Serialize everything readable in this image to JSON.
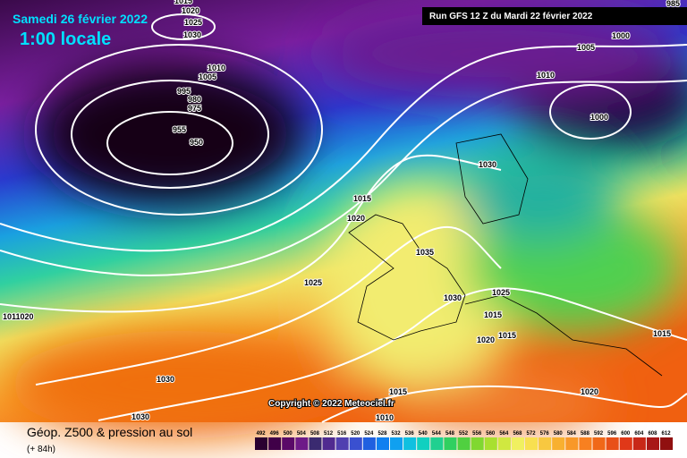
{
  "header": {
    "valid_date": "Samedi 26 février 2022",
    "local_time": "1:00 locale",
    "run": "Run GFS 12 Z du Mardi 22 février 2022"
  },
  "copyright": "Copyright © 2022 Meteociel.fr",
  "footer": {
    "title": "Géop. Z500 & pression au sol",
    "lead_time": "(+ 84h)"
  },
  "colorbar": {
    "levels": [
      492,
      496,
      500,
      504,
      508,
      512,
      516,
      520,
      524,
      528,
      532,
      536,
      540,
      544,
      548,
      552,
      556,
      560,
      564,
      568,
      572,
      576,
      580,
      584,
      588,
      592,
      596,
      600,
      604,
      608,
      612
    ]
  },
  "isobar_labels": [
    "1015",
    "1020",
    "1025",
    "1030",
    "985",
    "1000",
    "1005",
    "1010",
    "1000",
    "1010",
    "1005",
    "995",
    "980",
    "975",
    "955",
    "950",
    "1030",
    "1015",
    "1020",
    "1035",
    "1025",
    "1030",
    "1025",
    "1015",
    "1015",
    "1020",
    "1015",
    "1011020",
    "1030",
    "1030",
    "1015",
    "1010",
    "1020"
  ]
}
